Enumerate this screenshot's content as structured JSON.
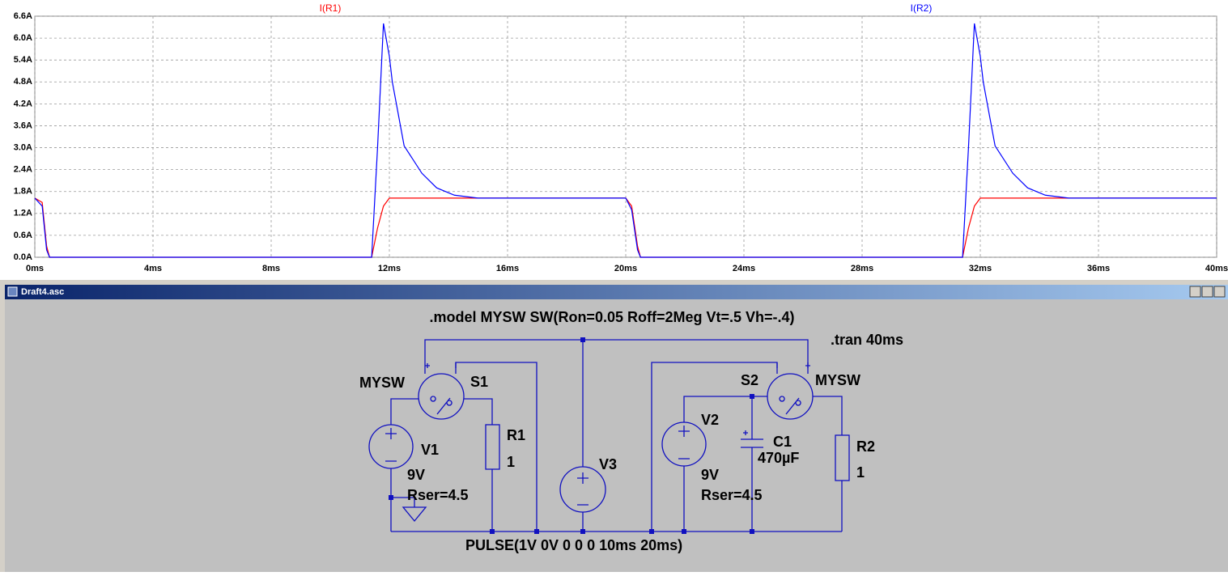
{
  "chart_data": {
    "type": "line",
    "x": [
      0,
      0.25,
      0.4,
      0.5,
      11.4,
      11.6,
      11.8,
      12.0,
      12.1,
      12.5,
      13.1,
      13.6,
      14.2,
      15,
      20,
      20.2,
      20.4,
      20.5,
      31.4,
      31.6,
      31.8,
      32.0,
      32.1,
      32.5,
      33.1,
      33.6,
      34.2,
      35,
      40
    ],
    "series": [
      {
        "name": "I(R1)",
        "color": "#ff0000",
        "values": [
          1.62,
          1.5,
          0.3,
          0,
          0,
          0.8,
          1.4,
          1.62,
          1.62,
          1.62,
          1.62,
          1.62,
          1.62,
          1.62,
          1.62,
          1.4,
          0.3,
          0,
          0,
          0.8,
          1.4,
          1.62,
          1.62,
          1.62,
          1.62,
          1.62,
          1.62,
          1.62,
          1.62
        ]
      },
      {
        "name": "I(R2)",
        "color": "#0000ff",
        "values": [
          1.62,
          1.4,
          0.2,
          0,
          0,
          3.0,
          6.4,
          5.5,
          4.8,
          3.05,
          2.3,
          1.9,
          1.7,
          1.62,
          1.62,
          1.3,
          0.2,
          0,
          0,
          3.0,
          6.4,
          5.5,
          4.8,
          3.05,
          2.3,
          1.9,
          1.7,
          1.62,
          1.62
        ]
      }
    ],
    "xlim": [
      0,
      40
    ],
    "xticks": [
      {
        "value": 0,
        "label": "0ms"
      },
      {
        "value": 4,
        "label": "4ms"
      },
      {
        "value": 8,
        "label": "8ms"
      },
      {
        "value": 12,
        "label": "12ms"
      },
      {
        "value": 16,
        "label": "16ms"
      },
      {
        "value": 20,
        "label": "20ms"
      },
      {
        "value": 24,
        "label": "24ms"
      },
      {
        "value": 28,
        "label": "28ms"
      },
      {
        "value": 32,
        "label": "32ms"
      },
      {
        "value": 36,
        "label": "36ms"
      },
      {
        "value": 40,
        "label": "40ms"
      }
    ],
    "ylim": [
      0,
      6.6
    ],
    "yticks": [
      {
        "value": 0,
        "label": "0.0A"
      },
      {
        "value": 0.6,
        "label": "0.6A"
      },
      {
        "value": 1.2,
        "label": "1.2A"
      },
      {
        "value": 1.8,
        "label": "1.8A"
      },
      {
        "value": 2.4,
        "label": "2.4A"
      },
      {
        "value": 3.0,
        "label": "3.0A"
      },
      {
        "value": 3.6,
        "label": "3.6A"
      },
      {
        "value": 4.2,
        "label": "4.2A"
      },
      {
        "value": 4.8,
        "label": "4.8A"
      },
      {
        "value": 5.4,
        "label": "5.4A"
      },
      {
        "value": 6.0,
        "label": "6.0A"
      },
      {
        "value": 6.6,
        "label": "6.6A"
      }
    ],
    "grid": true
  },
  "schematic": {
    "title": "Draft4.asc",
    "model": ".model MYSW SW(Ron=0.05 Roff=2Meg Vt=.5 Vh=-.4)",
    "tran": ".tran 40ms",
    "s1": {
      "model": "MYSW",
      "name": "S1"
    },
    "s2": {
      "model": "MYSW",
      "name": "S2"
    },
    "v1": {
      "name": "V1",
      "value": "9V",
      "rser": "Rser=4.5"
    },
    "v2": {
      "name": "V2",
      "value": "9V",
      "rser": "Rser=4.5"
    },
    "v3": {
      "name": "V3",
      "value": "PULSE(1V 0V 0 0 0 10ms 20ms)"
    },
    "r1": {
      "name": "R1",
      "value": "1"
    },
    "r2": {
      "name": "R2",
      "value": "1"
    },
    "c1": {
      "name": "C1",
      "value": "470µF"
    }
  }
}
